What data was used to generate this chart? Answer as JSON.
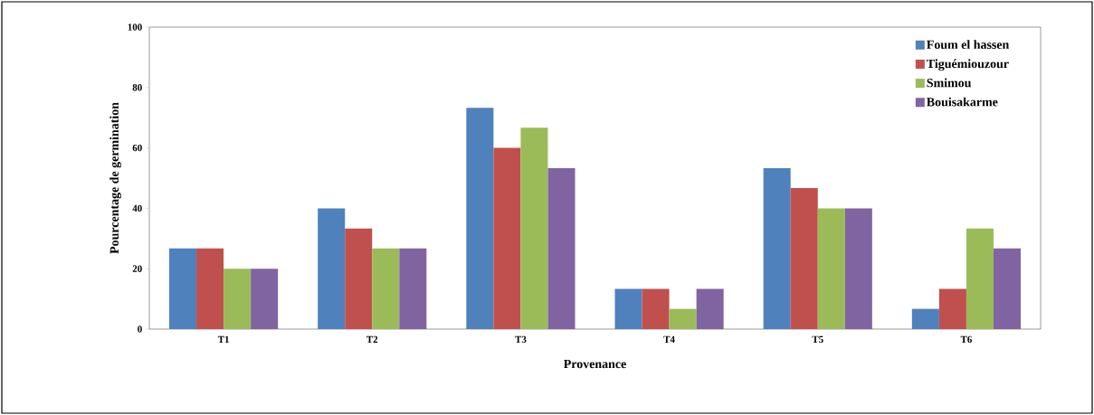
{
  "chart_data": {
    "type": "bar",
    "xlabel": "Provenance",
    "ylabel": "Pourcentage de germination",
    "categories": [
      "T1",
      "T2",
      "T3",
      "T4",
      "T5",
      "T6"
    ],
    "series": [
      {
        "name": "Foum el hassen",
        "color": "#4f81bd",
        "values": [
          26.7,
          40,
          73.3,
          13.3,
          53.3,
          6.7
        ]
      },
      {
        "name": "Tiguémiouzour",
        "color": "#c0504d",
        "values": [
          26.7,
          33.3,
          60,
          13.3,
          46.7,
          13.3
        ]
      },
      {
        "name": "Smimou",
        "color": "#9bbb59",
        "values": [
          20,
          26.7,
          66.7,
          6.7,
          40,
          33.3
        ]
      },
      {
        "name": "Bouisakarme",
        "color": "#8064a2",
        "values": [
          20,
          26.7,
          53.3,
          13.3,
          40,
          26.7
        ]
      }
    ],
    "ylim": [
      0,
      100
    ],
    "yticks": [
      0,
      20,
      40,
      60,
      80,
      100
    ],
    "legend": "top right"
  }
}
